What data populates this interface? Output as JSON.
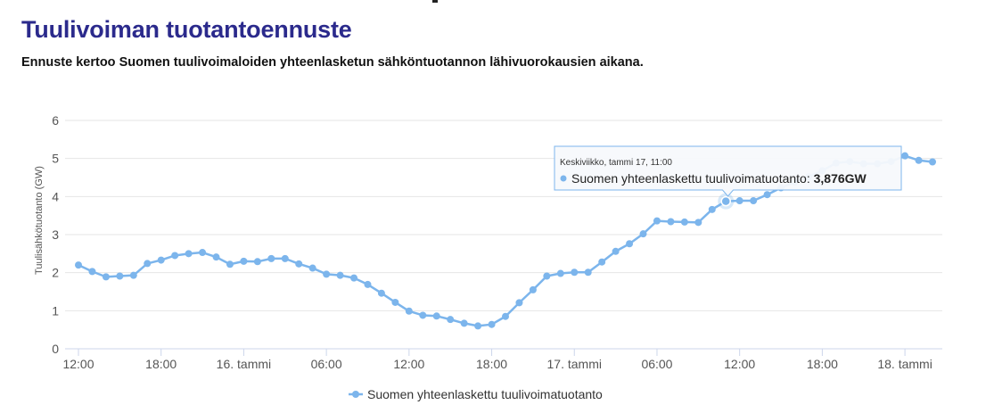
{
  "header": {
    "title": "Tuulivoiman tuotantoennuste",
    "subtitle": "Ennuste kertoo Suomen tuulivoimaloiden yhteenlasketun sähköntuotannon lähivuorokausien aikana."
  },
  "chart_data": {
    "type": "line",
    "ylabel": "Tuulisähkötuotanto (GW)",
    "ylim": [
      0,
      6
    ],
    "yticks": [
      0,
      1,
      2,
      3,
      4,
      5,
      6
    ],
    "x_unit": "hours since 15. tammi 12:00",
    "xlim": [
      0,
      62.5
    ],
    "xticks": [
      {
        "x": 0,
        "label": "12:00"
      },
      {
        "x": 6,
        "label": "18:00"
      },
      {
        "x": 12,
        "label": "16. tammi"
      },
      {
        "x": 18,
        "label": "06:00"
      },
      {
        "x": 24,
        "label": "12:00"
      },
      {
        "x": 30,
        "label": "18:00"
      },
      {
        "x": 36,
        "label": "17. tammi"
      },
      {
        "x": 42,
        "label": "06:00"
      },
      {
        "x": 48,
        "label": "12:00"
      },
      {
        "x": 54,
        "label": "18:00"
      },
      {
        "x": 60,
        "label": "18. tammi"
      }
    ],
    "grid": true,
    "legend_position": "bottom-center",
    "color": "#7cb5ec",
    "series": [
      {
        "name": "Suomen yhteenlaskettu tuulivoimatuotanto",
        "x": [
          0,
          1,
          2,
          3,
          4,
          5,
          6,
          7,
          8,
          9,
          10,
          11,
          12,
          13,
          14,
          15,
          16,
          17,
          18,
          19,
          20,
          21,
          22,
          23,
          24,
          25,
          26,
          27,
          28,
          29,
          30,
          31,
          32,
          33,
          34,
          35,
          36,
          37,
          38,
          39,
          40,
          41,
          42,
          43,
          44,
          45,
          46,
          47,
          48,
          49,
          50,
          51,
          52,
          53,
          54,
          55,
          56,
          57,
          58,
          59,
          60,
          61,
          62
        ],
        "values": [
          2.2,
          2.03,
          1.89,
          1.91,
          1.93,
          2.24,
          2.33,
          2.45,
          2.5,
          2.53,
          2.41,
          2.22,
          2.3,
          2.29,
          2.37,
          2.37,
          2.23,
          2.12,
          1.96,
          1.93,
          1.86,
          1.69,
          1.46,
          1.22,
          0.99,
          0.88,
          0.86,
          0.77,
          0.67,
          0.6,
          0.64,
          0.85,
          1.21,
          1.55,
          1.91,
          1.98,
          2.01,
          2.01,
          2.28,
          2.56,
          2.76,
          3.02,
          3.36,
          3.34,
          3.33,
          3.32,
          3.66,
          3.876,
          3.89,
          3.89,
          4.05,
          4.23,
          4.38,
          4.52,
          4.68,
          4.88,
          4.92,
          4.86,
          4.86,
          4.92,
          5.07,
          4.95,
          4.91
        ]
      }
    ],
    "legend": "Suomen yhteenlaskettu tuulivoimatuotanto",
    "tooltip": {
      "index": 47,
      "time": "Keskiviikko, tammi 17, 11:00",
      "series_label": "Suomen yhteenlaskettu tuulivoimatuotanto: ",
      "value_label": "3,876GW"
    }
  }
}
